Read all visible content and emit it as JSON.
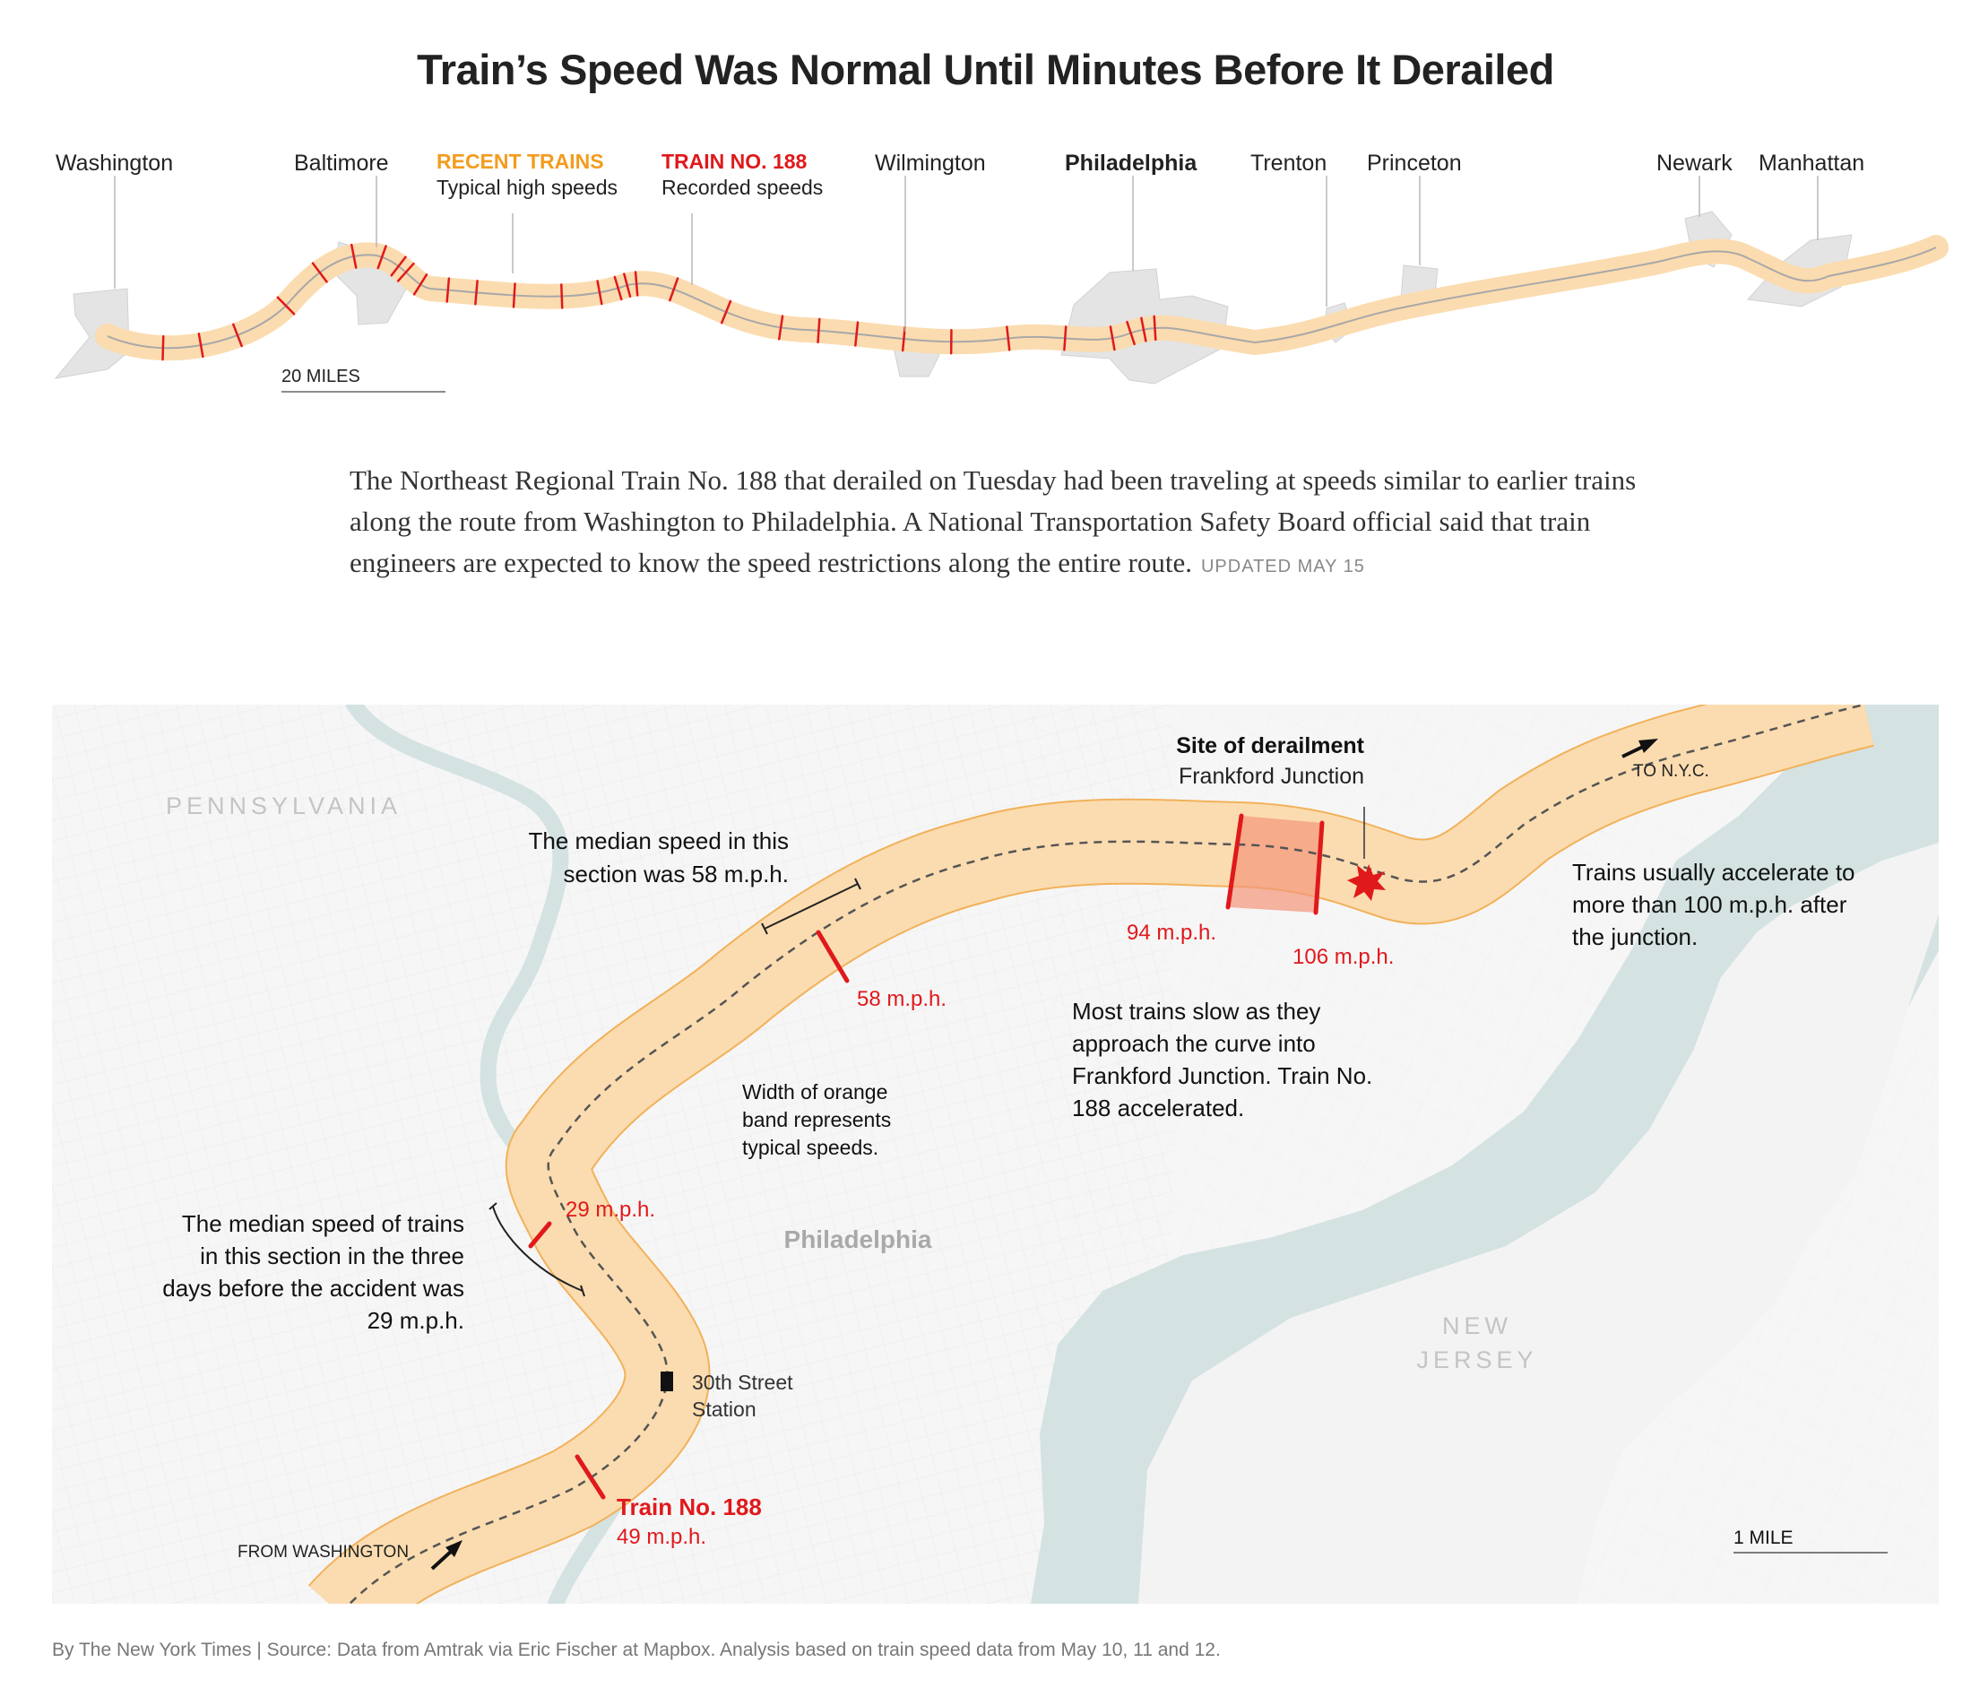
{
  "title": "Train’s Speed Was Normal Until Minutes Before It Derailed",
  "overview": {
    "cities": [
      {
        "name": "Washington",
        "bold": false
      },
      {
        "name": "Baltimore",
        "bold": false
      },
      {
        "name": "Wilmington",
        "bold": false
      },
      {
        "name": "Philadelphia",
        "bold": true
      },
      {
        "name": "Trenton",
        "bold": false
      },
      {
        "name": "Princeton",
        "bold": false
      },
      {
        "name": "Newark",
        "bold": false
      },
      {
        "name": "Manhattan",
        "bold": false
      }
    ],
    "legend": {
      "recent_title": "RECENT TRAINS",
      "recent_sub": "Typical high speeds",
      "train_title": "TRAIN NO. 188",
      "train_sub": "Recorded speeds"
    },
    "scale_label": "20 MILES"
  },
  "intro": {
    "text": "The Northeast Regional Train No. 188 that derailed on Tuesday had been traveling at speeds similar to earlier trains along the route from Washington to Philadelphia. A National Transportation Safety Board official said that train engineers are expected to know the speed restrictions along the entire route.",
    "updated": "UPDATED MAY 15"
  },
  "detail": {
    "state_pa": "PENNSYLVANIA",
    "state_nj_1": "NEW",
    "state_nj_2": "JERSEY",
    "city": "Philadelphia",
    "derail_title": "Site of derailment",
    "derail_sub": "Frankford Junction",
    "to_nyc": "TO N.Y.C.",
    "from_washington": "FROM WASHINGTON",
    "station_1": "30th Street",
    "station_2": "Station",
    "note_58_1": "The median speed in this",
    "note_58_2": "section was 58 m.p.h.",
    "note_29_1": "The median speed of trains",
    "note_29_2": "in this section in the three",
    "note_29_3": "days before the accident was",
    "note_29_4": "29 m.p.h.",
    "width_note_1": "Width of orange",
    "width_note_2": "band represents",
    "width_note_3": "typical speeds.",
    "slow_note_1": "Most trains slow as they",
    "slow_note_2": "approach the curve into",
    "slow_note_3": "Frankford Junction. Train No.",
    "slow_note_4": "188 accelerated.",
    "accel_note_1": "Trains usually accelerate to",
    "accel_note_2": "more than 100 m.p.h. after",
    "accel_note_3": "the junction.",
    "speed_58": "58 m.p.h.",
    "speed_29": "29 m.p.h.",
    "speed_94": "94 m.p.h.",
    "speed_106": "106 m.p.h.",
    "train_label": "Train No. 188",
    "speed_49": "49 m.p.h.",
    "scale_label": "1 MILE"
  },
  "credit": "By The New York Times | Source: Data from Amtrak via Eric Fischer at Mapbox. Analysis based on train speed data from May 10, 11 and 12.",
  "colors": {
    "band": "#fbdcb0",
    "band_edge": "#f2b15a",
    "recent": "#f39c1e",
    "train": "#e0191b",
    "water": "#d4e2e2",
    "city_fill": "#e3e3e3"
  }
}
